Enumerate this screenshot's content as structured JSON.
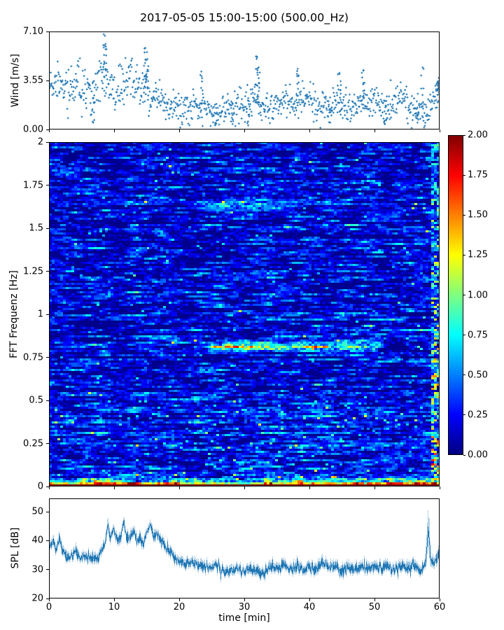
{
  "figure": {
    "title": "2017-05-05 15:00-15:00 (500.00_Hz)",
    "background_color": "#ffffff",
    "text_color": "#000000"
  },
  "chart_data": [
    {
      "id": "wind",
      "type": "scatter",
      "ylabel": "Wind [m/s]",
      "xlim": [
        0,
        60
      ],
      "ylim": [
        0,
        7.1
      ],
      "yticks": [
        {
          "value": 7.1,
          "label": "7.10"
        },
        {
          "value": 3.55,
          "label": "3.55"
        },
        {
          "value": 0,
          "label": "0.00"
        }
      ],
      "xticks": [
        0,
        10,
        20,
        30,
        40,
        50,
        60
      ],
      "marker": "+",
      "color": "#1f77b4",
      "n_points": 950,
      "mean_envelope": [
        [
          0,
          3.1
        ],
        [
          2,
          3.0
        ],
        [
          4,
          3.2
        ],
        [
          6,
          2.8
        ],
        [
          8,
          3.3
        ],
        [
          9,
          3.4
        ],
        [
          10,
          2.9
        ],
        [
          12,
          3.3
        ],
        [
          14,
          3.1
        ],
        [
          15,
          3.0
        ],
        [
          16,
          2.3
        ],
        [
          18,
          1.9
        ],
        [
          20,
          1.6
        ],
        [
          22,
          1.7
        ],
        [
          24,
          1.5
        ],
        [
          26,
          1.3
        ],
        [
          28,
          1.9
        ],
        [
          30,
          1.5
        ],
        [
          31,
          2.1
        ],
        [
          32,
          1.7
        ],
        [
          34,
          1.5
        ],
        [
          36,
          2.1
        ],
        [
          38,
          1.7
        ],
        [
          40,
          2.2
        ],
        [
          42,
          1.6
        ],
        [
          44,
          2.1
        ],
        [
          46,
          1.5
        ],
        [
          48,
          2.0
        ],
        [
          50,
          2.2
        ],
        [
          52,
          1.3
        ],
        [
          54,
          2.3
        ],
        [
          56,
          1.6
        ],
        [
          58,
          1.2
        ],
        [
          59,
          2.0
        ],
        [
          60,
          2.6
        ]
      ],
      "spread_envelope": [
        [
          0,
          0.75
        ],
        [
          8,
          0.85
        ],
        [
          15,
          0.8
        ],
        [
          18,
          0.55
        ],
        [
          30,
          0.55
        ],
        [
          60,
          0.55
        ]
      ],
      "gusts": [
        {
          "t": 8.4,
          "peak": 6.9
        },
        {
          "t": 8.7,
          "peak": 6.2
        },
        {
          "t": 14.8,
          "peak": 5.9
        },
        {
          "t": 15.1,
          "peak": 5.1
        },
        {
          "t": 23.4,
          "peak": 4.2
        },
        {
          "t": 31.8,
          "peak": 5.3
        },
        {
          "t": 32.2,
          "peak": 4.5
        },
        {
          "t": 38.2,
          "peak": 4.4
        },
        {
          "t": 44.6,
          "peak": 4.1
        },
        {
          "t": 48.3,
          "peak": 4.3
        },
        {
          "t": 57.4,
          "peak": 4.5
        },
        {
          "t": 59.7,
          "peak": 3.4
        },
        {
          "t": 59.9,
          "peak": 3.5
        }
      ],
      "lulls": [
        {
          "t": 6.8,
          "low": 0.5
        },
        {
          "t": 25.5,
          "low": 0.3
        },
        {
          "t": 28.2,
          "low": 0.4
        },
        {
          "t": 30.6,
          "low": 0.3
        },
        {
          "t": 43.2,
          "low": 0.5
        },
        {
          "t": 51.6,
          "low": 0.4
        },
        {
          "t": 56.6,
          "low": 0.5
        }
      ]
    },
    {
      "id": "spectrogram",
      "type": "heatmap",
      "ylabel": "FFT Frequenz [Hz]",
      "xlim": [
        0,
        60
      ],
      "ylim": [
        0,
        2
      ],
      "yticks": [
        {
          "value": 2,
          "label": "2"
        },
        {
          "value": 1.75,
          "label": "1.75"
        },
        {
          "value": 1.5,
          "label": "1.5"
        },
        {
          "value": 1.25,
          "label": "1.25"
        },
        {
          "value": 1,
          "label": "1"
        },
        {
          "value": 0.75,
          "label": "0.75"
        },
        {
          "value": 0.5,
          "label": "0.5"
        },
        {
          "value": 0.25,
          "label": "0.25"
        },
        {
          "value": 0,
          "label": "0"
        }
      ],
      "xticks": [
        0,
        10,
        20,
        30,
        40,
        50,
        60
      ],
      "colormap": "jet",
      "vmin": 0,
      "vmax": 2,
      "colorbar_ticks": [
        {
          "value": 2,
          "label": "2.00"
        },
        {
          "value": 1.75,
          "label": "1.75"
        },
        {
          "value": 1.5,
          "label": "1.50"
        },
        {
          "value": 1.25,
          "label": "1.25"
        },
        {
          "value": 1,
          "label": "1.00"
        },
        {
          "value": 0.75,
          "label": "0.75"
        },
        {
          "value": 0.5,
          "label": "0.50"
        },
        {
          "value": 0.25,
          "label": "0.25"
        },
        {
          "value": 0,
          "label": "0.00"
        }
      ],
      "background_level": {
        "mean": 0.16,
        "row_variation": 0.18,
        "streak_noise": 0.5
      },
      "bands": [
        {
          "f": 0.81,
          "df": 0.022,
          "t0": 24,
          "t1": 52,
          "amp": 0.85,
          "peak_t": 28.5,
          "peak_amp": 0.4
        },
        {
          "f": 0.84,
          "df": 0.015,
          "t0": 18,
          "t1": 60,
          "amp": 0.3
        },
        {
          "f": 1.63,
          "df": 0.035,
          "t0": 23,
          "t1": 39,
          "amp": 0.33
        },
        {
          "f": 1.6,
          "df": 0.02,
          "t0": 41,
          "t1": 56,
          "amp": 0.18
        },
        {
          "f": 0.97,
          "df": 0.015,
          "t0": 51,
          "t1": 56,
          "amp": 0.3
        }
      ],
      "low_freq_energy": {
        "red_width_hz": 0.016,
        "patch_width_hz": 0.05,
        "patch_block_min": 1.5,
        "max_value": 2.0
      },
      "right_edge_burst": {
        "t_start": 58.7,
        "density": 0.7,
        "max_value": 1.6
      },
      "dark_columns": [
        {
          "t0": 9.5,
          "t1": 12.0,
          "factor": 0.78
        },
        {
          "t0": 20.5,
          "t1": 22.3,
          "factor": 0.82
        }
      ]
    },
    {
      "id": "spl",
      "type": "line",
      "ylabel": "SPL [dB]",
      "xlabel": "time [min]",
      "xlim": [
        0,
        60
      ],
      "ylim": [
        20,
        54.6
      ],
      "yticks": [
        {
          "value": 50,
          "label": "50"
        },
        {
          "value": 40,
          "label": "40"
        },
        {
          "value": 30,
          "label": "30"
        },
        {
          "value": 20,
          "label": "20"
        }
      ],
      "xticks": [
        {
          "value": 0,
          "label": "0"
        },
        {
          "value": 10,
          "label": "10"
        },
        {
          "value": 20,
          "label": "20"
        },
        {
          "value": 30,
          "label": "30"
        },
        {
          "value": 40,
          "label": "40"
        },
        {
          "value": 50,
          "label": "50"
        },
        {
          "value": 60,
          "label": "60"
        }
      ],
      "color": "#1f77b4",
      "band_color": "rgba(31,119,180,0.32)",
      "noise_sigma": 0.85,
      "keypoints": [
        [
          0,
          38
        ],
        [
          0.5,
          40
        ],
        [
          1,
          37
        ],
        [
          1.5,
          41
        ],
        [
          2,
          36
        ],
        [
          3,
          35
        ],
        [
          4,
          36
        ],
        [
          5,
          34
        ],
        [
          6,
          35
        ],
        [
          7,
          34
        ],
        [
          8,
          36.5
        ],
        [
          8.7,
          40
        ],
        [
          9,
          45
        ],
        [
          9.4,
          41
        ],
        [
          10,
          43
        ],
        [
          10.5,
          40
        ],
        [
          11,
          42
        ],
        [
          11.5,
          46
        ],
        [
          12,
          41
        ],
        [
          12.5,
          43
        ],
        [
          13,
          44
        ],
        [
          13.5,
          40
        ],
        [
          14,
          42
        ],
        [
          14.5,
          39
        ],
        [
          15,
          43
        ],
        [
          15.5,
          45
        ],
        [
          16,
          41
        ],
        [
          16.5,
          42
        ],
        [
          17,
          39.5
        ],
        [
          18,
          38
        ],
        [
          19,
          34.5
        ],
        [
          20,
          33
        ],
        [
          21,
          32
        ],
        [
          22,
          33
        ],
        [
          23,
          31
        ],
        [
          24,
          32
        ],
        [
          25,
          30
        ],
        [
          26,
          31
        ],
        [
          27,
          29
        ],
        [
          28,
          30
        ],
        [
          29,
          30.5
        ],
        [
          30,
          28
        ],
        [
          31,
          30
        ],
        [
          32,
          30.5
        ],
        [
          33,
          29
        ],
        [
          34,
          31
        ],
        [
          35,
          30
        ],
        [
          36,
          31
        ],
        [
          37,
          30
        ],
        [
          38,
          31.5
        ],
        [
          39,
          30
        ],
        [
          40,
          31
        ],
        [
          41,
          30
        ],
        [
          42,
          31.5
        ],
        [
          43,
          30
        ],
        [
          44,
          31
        ],
        [
          45,
          29.5
        ],
        [
          46,
          31
        ],
        [
          47,
          30
        ],
        [
          48,
          31.5
        ],
        [
          49,
          30
        ],
        [
          50,
          31
        ],
        [
          51,
          30
        ],
        [
          52,
          31
        ],
        [
          53,
          29.5
        ],
        [
          54,
          31
        ],
        [
          55,
          30
        ],
        [
          56,
          31
        ],
        [
          57,
          30
        ],
        [
          57.8,
          31
        ],
        [
          58.1,
          38
        ],
        [
          58.3,
          45
        ],
        [
          58.6,
          35
        ],
        [
          59,
          32
        ],
        [
          59.5,
          33
        ],
        [
          60,
          35
        ]
      ],
      "band_halfwidth": [
        [
          0,
          1.2
        ],
        [
          8.8,
          1.2
        ],
        [
          9,
          3.0
        ],
        [
          9.3,
          1.2
        ],
        [
          20,
          1.2
        ],
        [
          57.9,
          1.2
        ],
        [
          58.1,
          7.5
        ],
        [
          58.5,
          7.5
        ],
        [
          58.8,
          1.3
        ],
        [
          60,
          1.5
        ]
      ]
    }
  ]
}
